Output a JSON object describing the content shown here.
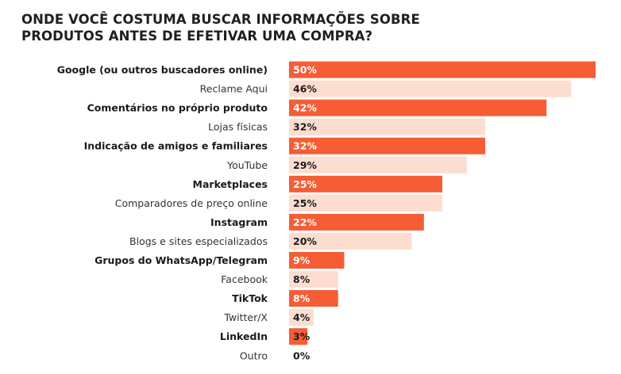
{
  "title_lines": [
    "ONDE VOCÊ COSTUMA BUSCAR INFORMAÇÕES SOBRE",
    "PRODUTOS ANTES DE EFETIVAR UMA COMPRA?"
  ],
  "colors": {
    "strong": "#f55d35",
    "light": "#fdddd0",
    "value_on_strong": "#ffffff",
    "value_on_light": "#1a1a1a"
  },
  "chart_data": {
    "type": "bar",
    "orientation": "horizontal",
    "categories": [
      "Google (ou outros buscadores online)",
      "Reclame Aqui",
      "Comentários no próprio produto",
      "Lojas físicas",
      "Indicação de amigos e familiares",
      "YouTube",
      "Marketplaces",
      "Comparadores de preço online",
      "Instagram",
      "Blogs e sites especializados",
      "Grupos do WhatsApp/Telegram",
      "Facebook",
      "TikTok",
      "Twitter/X",
      "LinkedIn",
      "Outro"
    ],
    "values": [
      50,
      46,
      42,
      32,
      32,
      29,
      25,
      25,
      22,
      20,
      9,
      8,
      8,
      4,
      3,
      0
    ],
    "value_labels": [
      "50%",
      "46%",
      "42%",
      "32%",
      "32%",
      "29%",
      "25%",
      "25%",
      "22%",
      "20%",
      "9%",
      "8%",
      "8%",
      "4%",
      "3%",
      "0%"
    ],
    "style": [
      "strong",
      "light",
      "strong",
      "light",
      "strong",
      "light",
      "strong",
      "light",
      "strong",
      "light",
      "strong",
      "light",
      "strong",
      "light",
      "strong",
      "light"
    ],
    "xlim": [
      0,
      50
    ],
    "grid": false,
    "legend": "none"
  }
}
